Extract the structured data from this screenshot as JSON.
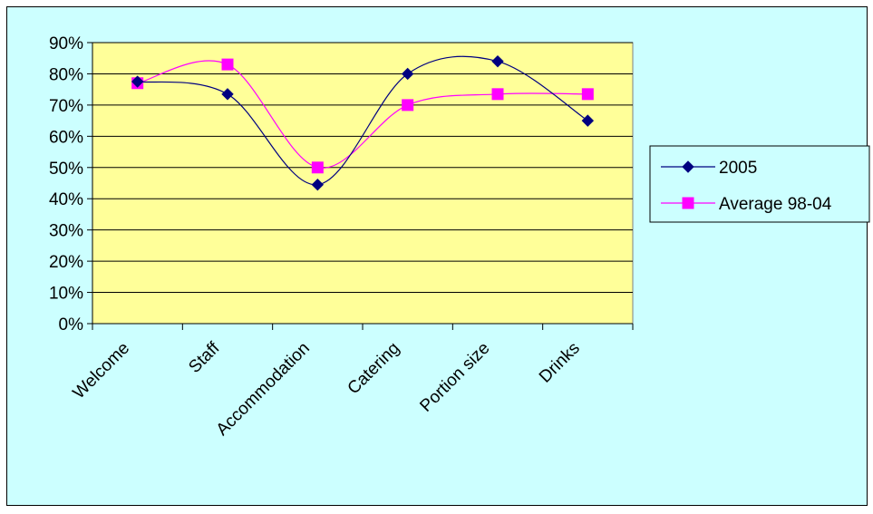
{
  "colors": {
    "chart_background": "#ccffff",
    "plot_background": "#ffff99",
    "frame": "#000000",
    "series_2005": "#000080",
    "series_average": "#ff00ff"
  },
  "chart_data": {
    "type": "line",
    "title": "",
    "xlabel": "",
    "ylabel": "",
    "categories": [
      "Welcome",
      "Staff",
      "Accommodation",
      "Catering",
      "Portion size",
      "Drinks"
    ],
    "y_ticks": [
      "0%",
      "10%",
      "20%",
      "30%",
      "40%",
      "50%",
      "60%",
      "70%",
      "80%",
      "90%"
    ],
    "ylim": [
      0,
      90
    ],
    "y_unit": "%",
    "grid": true,
    "smoothed": true,
    "legend_position": "right",
    "series": [
      {
        "name": "2005",
        "marker": "diamond",
        "values": [
          77.5,
          73.5,
          44.5,
          80,
          84,
          65
        ]
      },
      {
        "name": "Average 98-04",
        "marker": "square",
        "values": [
          77,
          83,
          50,
          70,
          73.5,
          73.5
        ]
      }
    ]
  }
}
